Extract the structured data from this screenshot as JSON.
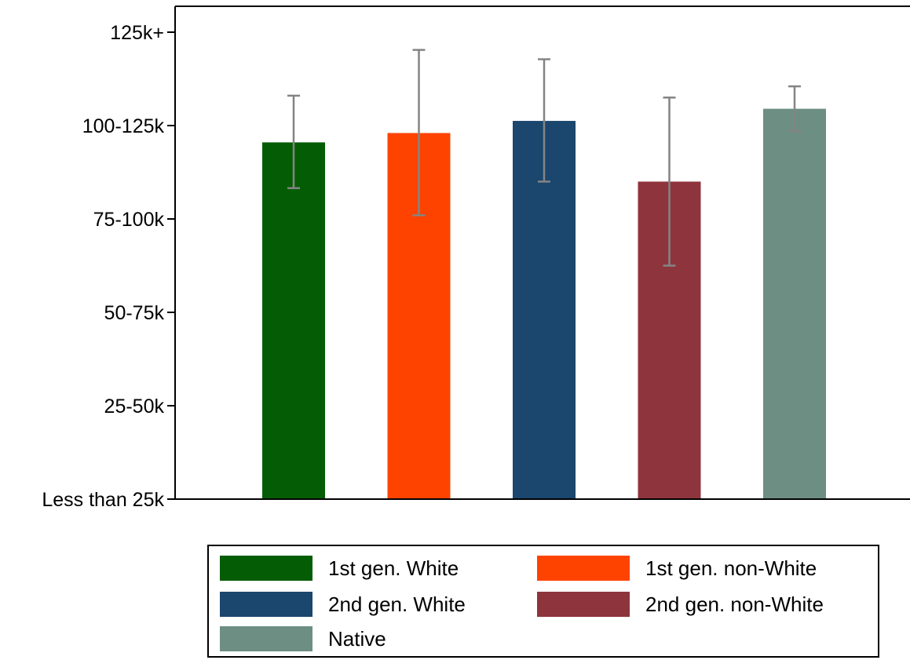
{
  "chart_data": {
    "type": "bar",
    "categories": [
      "1st gen. White",
      "1st gen. non-White",
      "2nd gen. White",
      "2nd gen. non-White",
      "Native"
    ],
    "series": [
      {
        "name": "1st gen. White",
        "color": "#045d04",
        "value": 3.82,
        "ci_low": 3.33,
        "ci_high": 4.32
      },
      {
        "name": "1st gen. non-White",
        "color": "#fe4300",
        "value": 3.92,
        "ci_low": 3.04,
        "ci_high": 4.81
      },
      {
        "name": "2nd gen. White",
        "color": "#1b466d",
        "value": 4.05,
        "ci_low": 3.4,
        "ci_high": 4.71
      },
      {
        "name": "2nd gen. non-White",
        "color": "#8e343c",
        "value": 3.4,
        "ci_low": 2.5,
        "ci_high": 4.3
      },
      {
        "name": "Native",
        "color": "#6d8e83",
        "value": 4.18,
        "ci_low": 3.94,
        "ci_high": 4.42
      }
    ],
    "yticks": [
      "Less than 25k",
      "25-50k",
      "50-75k",
      "75-100k",
      "100-125k",
      "125k+"
    ],
    "ylim": [
      0,
      5.25
    ],
    "error_bar_color": "#848484",
    "title": "",
    "xlabel": "",
    "ylabel": "",
    "legend_position": "bottom"
  }
}
